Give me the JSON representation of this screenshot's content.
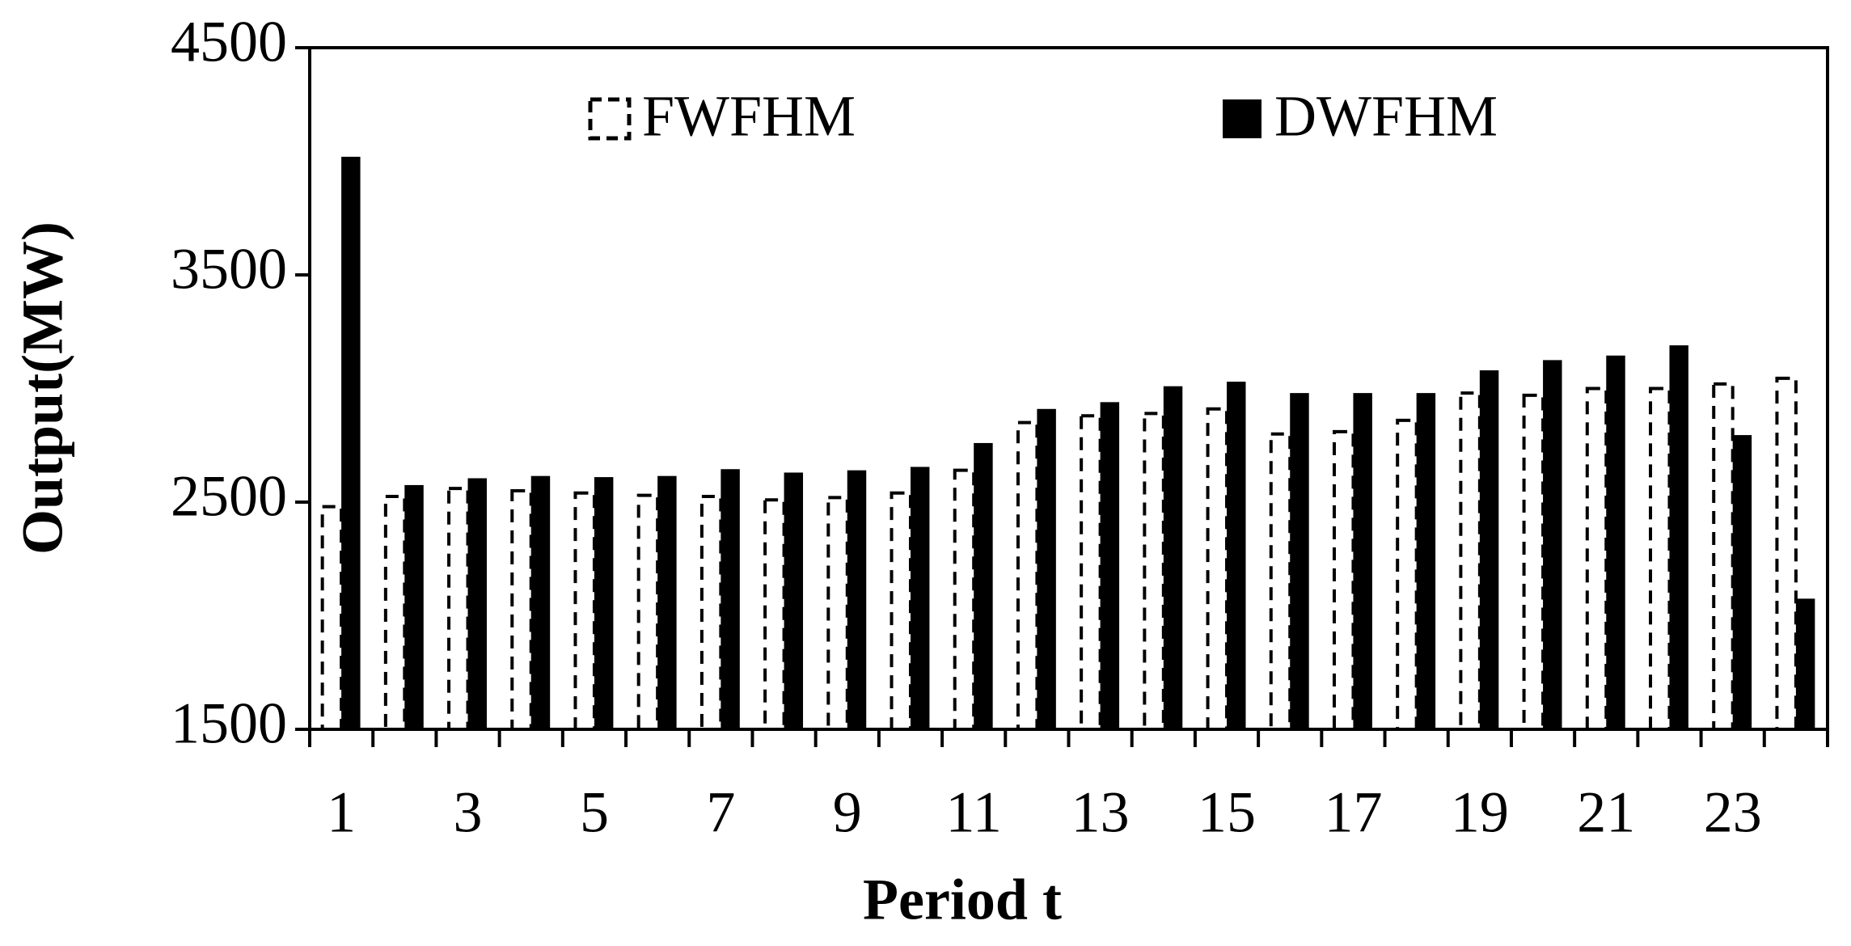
{
  "chart_data": {
    "type": "bar",
    "x_label": "Period t",
    "y_label": "Output(MW)",
    "categories": [
      "1",
      null,
      "3",
      null,
      "5",
      null,
      "7",
      null,
      "9",
      null,
      "11",
      null,
      "13",
      null,
      "15",
      null,
      "17",
      null,
      "19",
      null,
      "21",
      null,
      "23",
      null
    ],
    "series": [
      {
        "name": "FWFHM",
        "color": "#ffffff",
        "style": "dashed",
        "values": [
          2480,
          2525,
          2560,
          2550,
          2540,
          2530,
          2525,
          2510,
          2520,
          2540,
          2640,
          2850,
          2880,
          2890,
          2910,
          2800,
          2810,
          2860,
          2980,
          2970,
          3000,
          3000,
          3020,
          3045
        ]
      },
      {
        "name": "DWFHM",
        "color": "#000000",
        "style": "solid",
        "values": [
          4020,
          2575,
          2605,
          2615,
          2610,
          2615,
          2645,
          2630,
          2640,
          2655,
          2760,
          2910,
          2940,
          3010,
          3030,
          2980,
          2980,
          2980,
          3080,
          3125,
          3145,
          3190,
          2795,
          2075
        ]
      }
    ],
    "ylim": [
      1500,
      4500
    ],
    "yticks": [
      1500,
      2500,
      3500,
      4500
    ],
    "grid": false
  }
}
